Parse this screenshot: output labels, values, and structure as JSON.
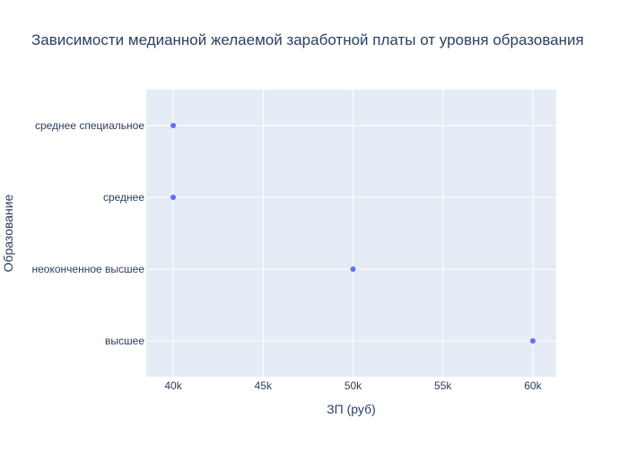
{
  "chart_data": {
    "type": "scatter",
    "title": "Зависимости медианной желаемой заработной платы от уровня образования",
    "xlabel": "ЗП (руб)",
    "ylabel": "Образование",
    "categories": [
      "высшее",
      "неоконченное высшее",
      "среднее",
      "среднее специальное"
    ],
    "points": [
      {
        "category": "среднее специальное",
        "x": 40000
      },
      {
        "category": "среднее",
        "x": 40000
      },
      {
        "category": "неоконченное высшее",
        "x": 50000
      },
      {
        "category": "высшее",
        "x": 60000
      }
    ],
    "xlim": [
      38500,
      61300
    ],
    "xticks": [
      40000,
      45000,
      50000,
      55000,
      60000
    ],
    "xtick_labels": [
      "40k",
      "45k",
      "50k",
      "55k",
      "60k"
    ],
    "grid": true,
    "colors": {
      "plot_background": "#E5ECF6",
      "grid": "#FFFFFF",
      "marker": "#636EFA",
      "text": "#2A3F5F"
    }
  }
}
